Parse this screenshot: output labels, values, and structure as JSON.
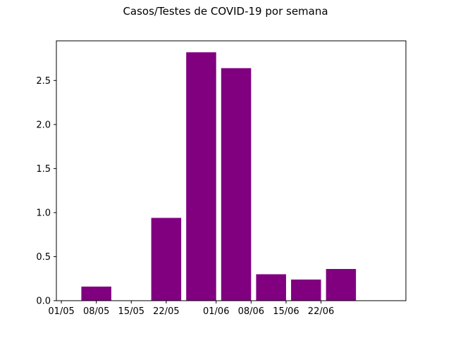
{
  "chart_data": {
    "type": "bar",
    "title": "Casos/Testes de COVID-19 por semana",
    "xlabel": "",
    "ylabel": "",
    "bar_color": "#800080",
    "bars": [
      {
        "x": "2020-05-08",
        "value": 0.16
      },
      {
        "x": "2020-05-15",
        "value": 0.0
      },
      {
        "x": "2020-05-22",
        "value": 0.94
      },
      {
        "x": "2020-05-29",
        "value": 2.82
      },
      {
        "x": "2020-06-05",
        "value": 2.64
      },
      {
        "x": "2020-06-12",
        "value": 0.3
      },
      {
        "x": "2020-06-19",
        "value": 0.24
      },
      {
        "x": "2020-06-26",
        "value": 0.36
      }
    ],
    "xlim": [
      "2020-04-30",
      "2020-07-09"
    ],
    "ylim": [
      0,
      2.95
    ],
    "x_ticks": [
      {
        "date": "2020-05-01",
        "label": "01/05"
      },
      {
        "date": "2020-05-08",
        "label": "08/05"
      },
      {
        "date": "2020-05-15",
        "label": "15/05"
      },
      {
        "date": "2020-05-22",
        "label": "22/05"
      },
      {
        "date": "2020-06-01",
        "label": "01/06"
      },
      {
        "date": "2020-06-08",
        "label": "08/06"
      },
      {
        "date": "2020-06-15",
        "label": "15/06"
      },
      {
        "date": "2020-06-22",
        "label": "22/06"
      }
    ],
    "y_ticks": [
      {
        "value": 0.0,
        "label": "0.0"
      },
      {
        "value": 0.5,
        "label": "0.5"
      },
      {
        "value": 1.0,
        "label": "1.0"
      },
      {
        "value": 1.5,
        "label": "1.5"
      },
      {
        "value": 2.0,
        "label": "2.0"
      },
      {
        "value": 2.5,
        "label": "2.5"
      }
    ],
    "grid": false,
    "legend": "none"
  }
}
